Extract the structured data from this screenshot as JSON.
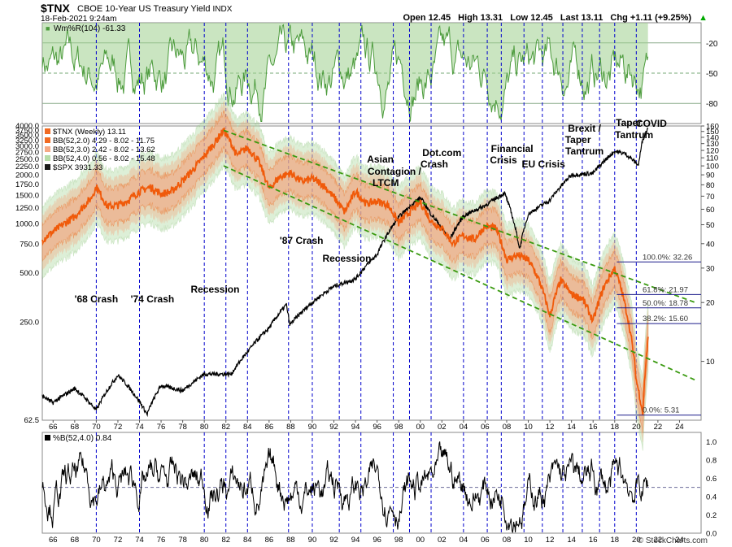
{
  "header": {
    "symbol": "$TNX",
    "name": "CBOE 10-Year US Treasury Yield",
    "exchange": "INDX",
    "date": "18-Feb-2021 9:24am",
    "open_label": "Open",
    "open": "12.45",
    "high_label": "High",
    "high": "13.31",
    "low_label": "Low",
    "low": "12.45",
    "last_label": "Last",
    "last": "13.11",
    "chg_label": "Chg",
    "chg": "+1.11 (+9.25%)",
    "chg_icon": "up-arrow-icon",
    "brand": "© StockCharts.com"
  },
  "colors": {
    "orange": "#f05a0a",
    "band_fill": "#f4a078",
    "band_green": "#b6dca8",
    "green": "#4c9b3c",
    "channel": "#3a9a10",
    "blue_grid": "#0000cc",
    "spx": "#000000"
  },
  "chart_data": [
    {
      "type": "area",
      "panel": "top",
      "legend": "Wm%R(104) -61.33",
      "y_ticks": [
        "-20",
        "-50",
        "-80"
      ],
      "ylim": [
        -100,
        0
      ],
      "levels": [
        -20,
        -50,
        -80
      ],
      "note": "Williams %R oscillator, green fill"
    },
    {
      "type": "line",
      "panel": "main",
      "log_scale": true,
      "legend": [
        {
          "name": "$TNX (Weekly) 13.11",
          "color": "#f05a0a"
        },
        {
          "name": "BB(52,2.0) 4.29 - 8.02 - 11.75",
          "color": "#f05a0a"
        },
        {
          "name": "BB(52,3.0) 2.42 - 8.02 - 13.62",
          "color": "#f4a078"
        },
        {
          "name": "BB(52,4.0) 0.56 - 8.02 - 15.48",
          "color": "#b6dca8"
        },
        {
          "name": "$SPX 3931.33",
          "color": "#000000"
        }
      ],
      "left_axis_ticks": [
        "4000.0",
        "3750.0",
        "3500.0",
        "3250.0",
        "3000.0",
        "2750.0",
        "2500.0",
        "2250.0",
        "2000.0",
        "1750.0",
        "1500.0",
        "1250.0",
        "1000.0",
        "750.0",
        "500.0",
        "250.0",
        "62.5"
      ],
      "right_axis_ticks": [
        "160",
        "150",
        "140",
        "130",
        "120",
        "110",
        "100",
        "90",
        "80",
        "70",
        "60",
        "50",
        "40",
        "30",
        "20",
        "10"
      ],
      "x_ticks": [
        "66",
        "68",
        "70",
        "72",
        "74",
        "76",
        "78",
        "80",
        "82",
        "84",
        "86",
        "88",
        "90",
        "92",
        "94",
        "96",
        "98",
        "00",
        "02",
        "04",
        "06",
        "08",
        "10",
        "12",
        "14",
        "16",
        "18",
        "20",
        "22",
        "24"
      ],
      "xlim": [
        1965,
        2026
      ],
      "tnx_series": {
        "name": "$TNX",
        "x": [
          1965,
          1966,
          1968,
          1969.5,
          1970,
          1971,
          1972,
          1973,
          1974,
          1975,
          1976,
          1977,
          1978,
          1979,
          1980,
          1981,
          1981.8,
          1982.5,
          1983,
          1984,
          1985,
          1986,
          1987,
          1988,
          1989,
          1990,
          1991,
          1992,
          1993,
          1994,
          1995,
          1996,
          1997,
          1998,
          1999,
          2000,
          2001,
          2002,
          2003,
          2004,
          2005,
          2006,
          2007,
          2008,
          2009,
          2010,
          2011,
          2012,
          2013,
          2014,
          2015,
          2016,
          2017,
          2018,
          2019,
          2020,
          2020.6,
          2021.1
        ],
        "values": [
          42,
          46,
          55,
          68,
          78,
          62,
          63,
          67,
          74,
          78,
          72,
          74,
          84,
          96,
          112,
          132,
          152,
          130,
          113,
          124,
          106,
          76,
          88,
          92,
          83,
          86,
          80,
          69,
          58,
          74,
          64,
          66,
          63,
          51,
          58,
          65,
          52,
          48,
          40,
          44,
          42,
          49,
          48,
          33,
          35,
          33,
          26,
          17,
          26,
          22,
          21,
          16,
          24,
          30,
          19,
          8,
          5.4,
          13.1
        ]
      },
      "spx_series": {
        "name": "$SPX",
        "x": [
          1965,
          1966,
          1968,
          1970,
          1972,
          1973,
          1974.7,
          1976,
          1978,
          1980,
          1982.5,
          1984,
          1986,
          1987.6,
          1987.9,
          1990,
          1992,
          1994,
          1996,
          1998,
          2000,
          2001,
          2002.7,
          2004,
          2006,
          2007.8,
          2009.2,
          2010,
          2012,
          2014,
          2016,
          2018,
          2019,
          2020.2,
          2020.6,
          2021.1
        ],
        "values": [
          88,
          80,
          98,
          72,
          118,
          100,
          68,
          102,
          95,
          120,
          120,
          164,
          230,
          320,
          240,
          330,
          415,
          460,
          650,
          1100,
          1450,
          1150,
          800,
          1120,
          1300,
          1550,
          700,
          1150,
          1400,
          2000,
          2050,
          2800,
          2700,
          2300,
          3300,
          3931
        ]
      },
      "channel": {
        "upper": [
          [
            1981.8,
            152
          ],
          [
            2019,
            27
          ]
        ],
        "lower": [
          [
            1981.8,
            100
          ],
          [
            2025.5,
            8
          ]
        ]
      },
      "fib_levels": [
        {
          "label": "100.0%: 32.26",
          "value": 32.26
        },
        {
          "label": "61.8%: 21.97",
          "value": 21.97
        },
        {
          "label": "50.0%: 18.78",
          "value": 18.78
        },
        {
          "label": "38.2%: 15.60",
          "value": 15.6
        },
        {
          "label": "0.0%: 5.31",
          "value": 5.31
        }
      ],
      "event_years": [
        1970,
        1974,
        1980,
        1982,
        1984,
        1987.8,
        1990,
        1992.5,
        1994.5,
        1997.5,
        1999,
        2001,
        2004,
        2006.2,
        2007.5,
        2009.6,
        2011.3,
        2013.2,
        2015,
        2016.6,
        2018,
        2020
      ],
      "annotations": [
        {
          "text": "'68 Crash",
          "year": 1970
        },
        {
          "text": "'74 Crash",
          "year": 1975.2
        },
        {
          "text": "Recession",
          "year": 1981
        },
        {
          "text": "'87 Crash",
          "year": 1989
        },
        {
          "text": "Recession",
          "year": 1993.2
        },
        {
          "text": "Asian",
          "year": 1996.3
        },
        {
          "text": "Contagion /",
          "year": 1997.6
        },
        {
          "text": "LTCM",
          "year": 1996.8
        },
        {
          "text": "Dot.com",
          "year": 2002
        },
        {
          "text": "Crash",
          "year": 2001.3
        },
        {
          "text": "Financial",
          "year": 2008.5
        },
        {
          "text": "Crisis",
          "year": 2007.7
        },
        {
          "text": "EU Crisis",
          "year": 2011.4
        },
        {
          "text": "Brexit /",
          "year": 2015.2
        },
        {
          "text": "Taper",
          "year": 2014.6
        },
        {
          "text": "Tantrum",
          "year": 2015.2
        },
        {
          "text": "Taper",
          "year": 2019.3
        },
        {
          "text": "Tantrum",
          "year": 2019.8
        },
        {
          "text": "COVID",
          "year": 2021.4
        }
      ]
    },
    {
      "type": "line",
      "panel": "bottom",
      "legend": "%B(52,4.0) 0.84",
      "y_ticks": [
        "1.0",
        "0.8",
        "0.6",
        "0.4",
        "0.2",
        "0.0"
      ],
      "ylim": [
        0,
        1.1
      ],
      "midline": 0.5,
      "note": "%B indicator, black line"
    }
  ]
}
